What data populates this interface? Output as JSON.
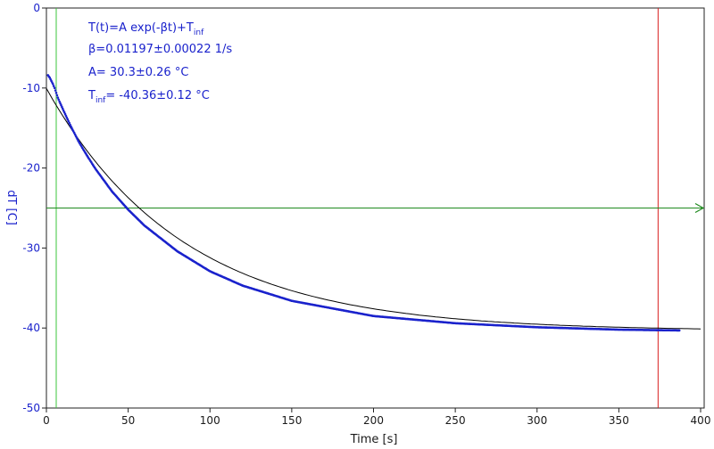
{
  "chart_data": {
    "type": "scatter",
    "xlabel": "Time [s]",
    "ylabel": "dT [C]",
    "xlim": [
      0,
      400
    ],
    "ylim": [
      -50,
      0
    ],
    "x_ticks": [
      0,
      50,
      100,
      150,
      200,
      250,
      300,
      350,
      400
    ],
    "y_ticks": [
      0,
      -10,
      -20,
      -30,
      -40,
      -50
    ],
    "x_tick_labels": [
      "0",
      "50",
      "100",
      "150",
      "200",
      "250",
      "300",
      "350",
      "400"
    ],
    "y_tick_labels": [
      "0",
      "-10",
      "-20",
      "-30",
      "-40",
      "-50"
    ],
    "grid": false,
    "annotations": {
      "formula_main": "T(t)=A exp(-βt)+T",
      "formula_sub": "inf",
      "beta": "β=0.01197±0.00022 1/s",
      "amplitude": "A= 30.3±0.26 °C",
      "tinf_pre": "T",
      "tinf_sub": "inf",
      "tinf_post": "= -40.36±0.12 °C"
    },
    "fit": {
      "A": 30.3,
      "beta": 0.01197,
      "T_inf": -40.36
    },
    "series": [
      {
        "kind": "measured",
        "color": "#1a22cc",
        "x_range": [
          1,
          387
        ],
        "x": [
          1,
          2,
          3,
          4,
          5,
          6,
          7,
          8,
          10,
          12,
          15,
          20,
          25,
          30,
          40,
          50,
          60,
          80,
          100,
          120,
          150,
          200,
          250,
          300,
          350,
          387
        ],
        "y": [
          -8.4,
          -8.7,
          -9.1,
          -9.5,
          -10.0,
          -10.6,
          -11.2,
          -11.7,
          -12.6,
          -13.5,
          -14.8,
          -16.8,
          -18.5,
          -20.1,
          -22.9,
          -25.2,
          -27.2,
          -30.4,
          -32.9,
          -34.7,
          -36.6,
          -38.5,
          -39.4,
          -39.9,
          -40.2,
          -40.3
        ]
      },
      {
        "kind": "fit",
        "color": "#000000",
        "x_range": [
          0,
          400
        ]
      }
    ],
    "reference_lines": [
      {
        "orientation": "vertical",
        "value": 6,
        "color": "#3cc43c"
      },
      {
        "orientation": "vertical",
        "value": 374,
        "color": "#d82020"
      },
      {
        "orientation": "horizontal",
        "value": -25,
        "color": "#1f8a1f"
      }
    ]
  }
}
